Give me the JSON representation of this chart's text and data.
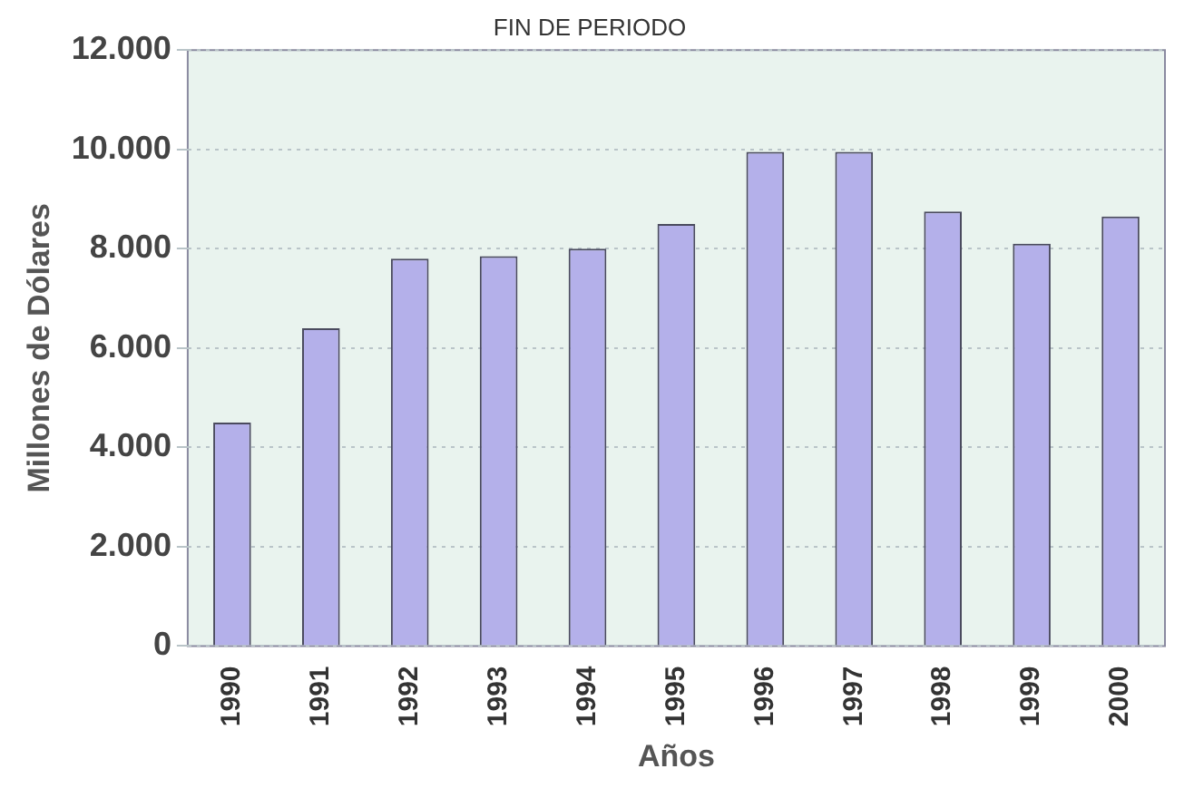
{
  "chart_data": {
    "type": "bar",
    "title": "FIN DE PERIODO",
    "xlabel": "Años",
    "ylabel": "Millones de Dólares",
    "categories": [
      "1990",
      "1991",
      "1992",
      "1993",
      "1994",
      "1995",
      "1996",
      "1997",
      "1998",
      "1999",
      "2000"
    ],
    "values": [
      4500,
      6400,
      7800,
      7850,
      8000,
      8500,
      9950,
      9950,
      8750,
      8100,
      8650
    ],
    "color": "#b4b0ea",
    "ylim": [
      0,
      12000
    ],
    "yticks": [
      {
        "value": 0,
        "label": "0"
      },
      {
        "value": 2000,
        "label": "2.000"
      },
      {
        "value": 4000,
        "label": "4.000"
      },
      {
        "value": 6000,
        "label": "6.000"
      },
      {
        "value": 8000,
        "label": "8.000"
      },
      {
        "value": 10000,
        "label": "10.000"
      },
      {
        "value": 12000,
        "label": "12.000"
      }
    ],
    "grid": "y",
    "legend": false
  }
}
